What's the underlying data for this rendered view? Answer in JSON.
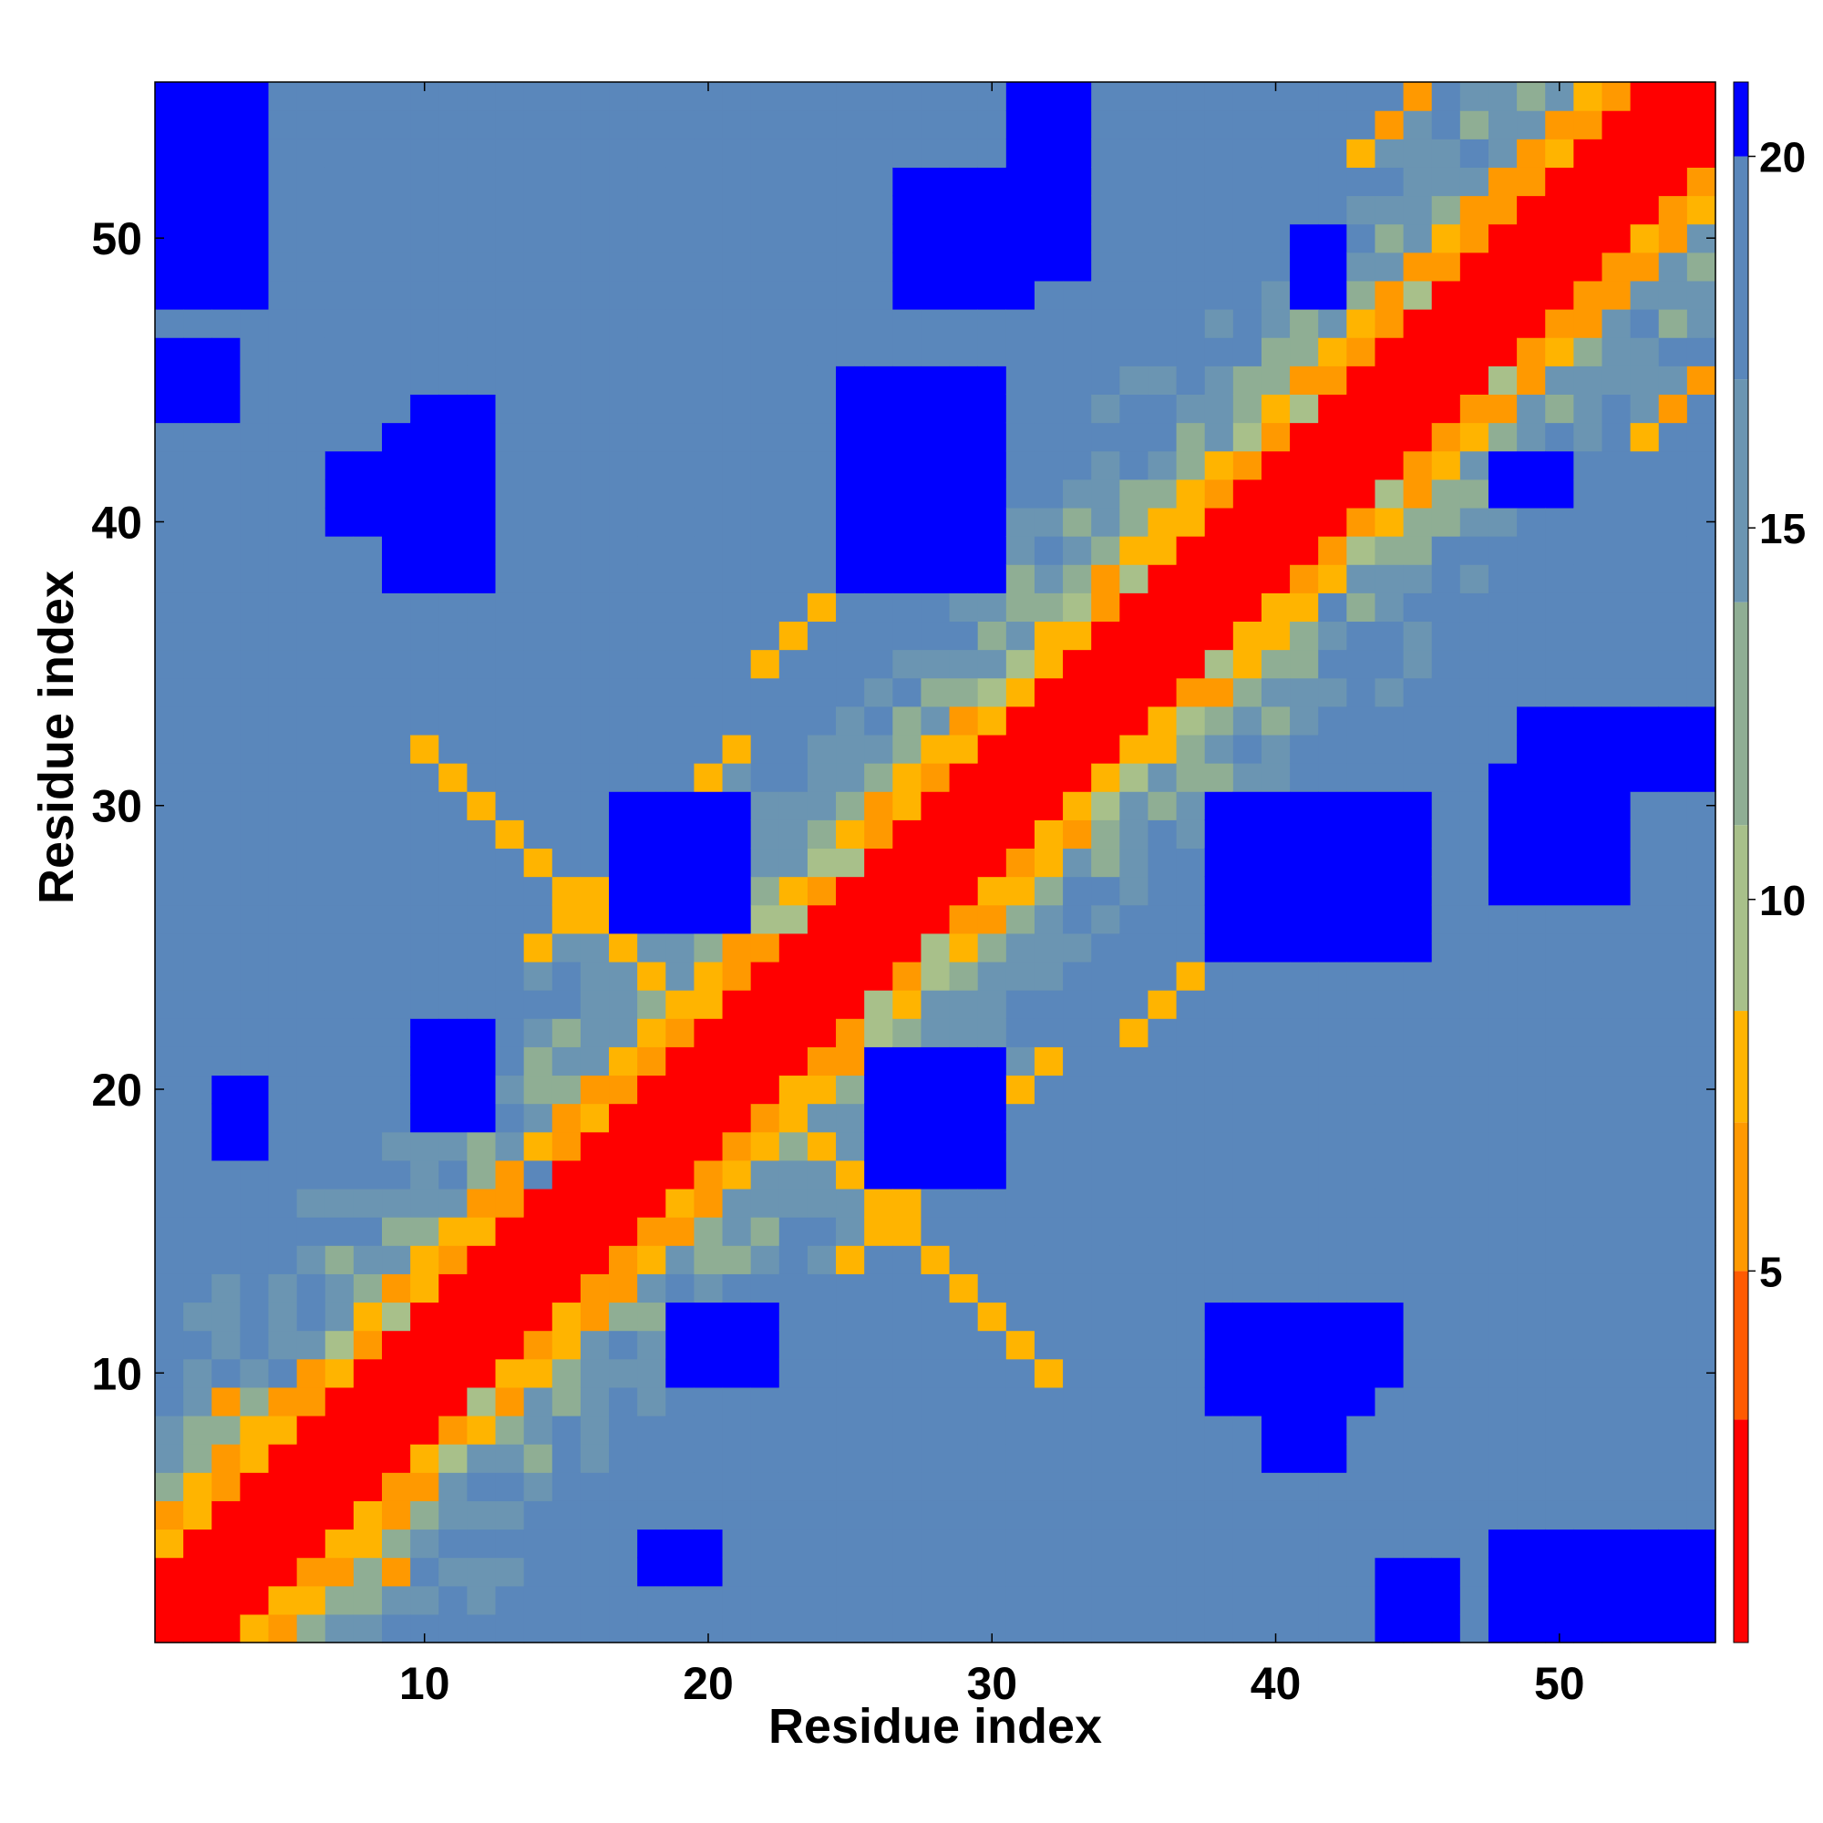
{
  "chart_data": {
    "type": "heatmap",
    "title": "",
    "xlabel": "Residue index",
    "ylabel": "Residue index",
    "x_range": [
      1,
      55
    ],
    "y_range": [
      1,
      55
    ],
    "x_ticks": [
      "10",
      "20",
      "30",
      "40",
      "50"
    ],
    "y_ticks": [
      "10",
      "20",
      "30",
      "40",
      "50"
    ],
    "colorbar": {
      "ticks": [
        "5",
        "10",
        "15",
        "20"
      ],
      "range": [
        0,
        21
      ],
      "placement": "right"
    },
    "matrix_symmetric": true,
    "color_levels": [
      {
        "max": 3.0,
        "color": "#ff0000"
      },
      {
        "max": 5.0,
        "color": "#ff5a00"
      },
      {
        "max": 7.0,
        "color": "#ff9900"
      },
      {
        "max": 8.5,
        "color": "#ffb400"
      },
      {
        "max": 11.0,
        "color": "#a8c08a"
      },
      {
        "max": 14.0,
        "color": "#8fae94"
      },
      {
        "max": 17.0,
        "color": "#6b95b2"
      },
      {
        "max": 20.0,
        "color": "#5a87bb"
      },
      {
        "max": 99.0,
        "color": "#0000ff"
      }
    ],
    "contact_bands": [
      {
        "i_start": 10,
        "j_start": 32,
        "dir": -1,
        "len": 12,
        "value": 7
      },
      {
        "i_start": 14,
        "j_start": 25,
        "dir": 1,
        "len": 8,
        "value": 7
      },
      {
        "i_start": 3,
        "j_start": 9,
        "dir": -1,
        "len": 6,
        "value": 6
      },
      {
        "i_start": 22,
        "j_start": 35,
        "dir": 1,
        "len": 6,
        "value": 7
      },
      {
        "i_start": 43,
        "j_start": 53,
        "dir": 1,
        "len": 4,
        "value": 6
      }
    ],
    "far_blocks": [
      {
        "i": [
          17,
          21
        ],
        "j": [
          26,
          30
        ]
      },
      {
        "i": [
          1,
          4
        ],
        "j": [
          48,
          55
        ]
      },
      {
        "i": [
          9,
          12
        ],
        "j": [
          38,
          43
        ]
      },
      {
        "i": [
          19,
          22
        ],
        "j": [
          10,
          12
        ]
      },
      {
        "i": [
          25,
          29
        ],
        "j": [
          40,
          45
        ]
      },
      {
        "i": [
          38,
          44
        ],
        "j": [
          10,
          12
        ]
      },
      {
        "i": [
          38,
          45
        ],
        "j": [
          25,
          30
        ]
      },
      {
        "i": [
          49,
          52
        ],
        "j": [
          27,
          33
        ]
      },
      {
        "i": [
          31,
          33
        ],
        "j": [
          49,
          55
        ]
      },
      {
        "i": [
          27,
          31
        ],
        "j": [
          48,
          52
        ]
      },
      {
        "i": [
          18,
          20
        ],
        "j": [
          3,
          4
        ]
      },
      {
        "i": [
          7,
          8
        ],
        "j": [
          40,
          42
        ]
      },
      {
        "i": [
          1,
          3
        ],
        "j": [
          44,
          46
        ]
      },
      {
        "i": [
          41,
          42
        ],
        "j": [
          48,
          50
        ]
      }
    ]
  }
}
